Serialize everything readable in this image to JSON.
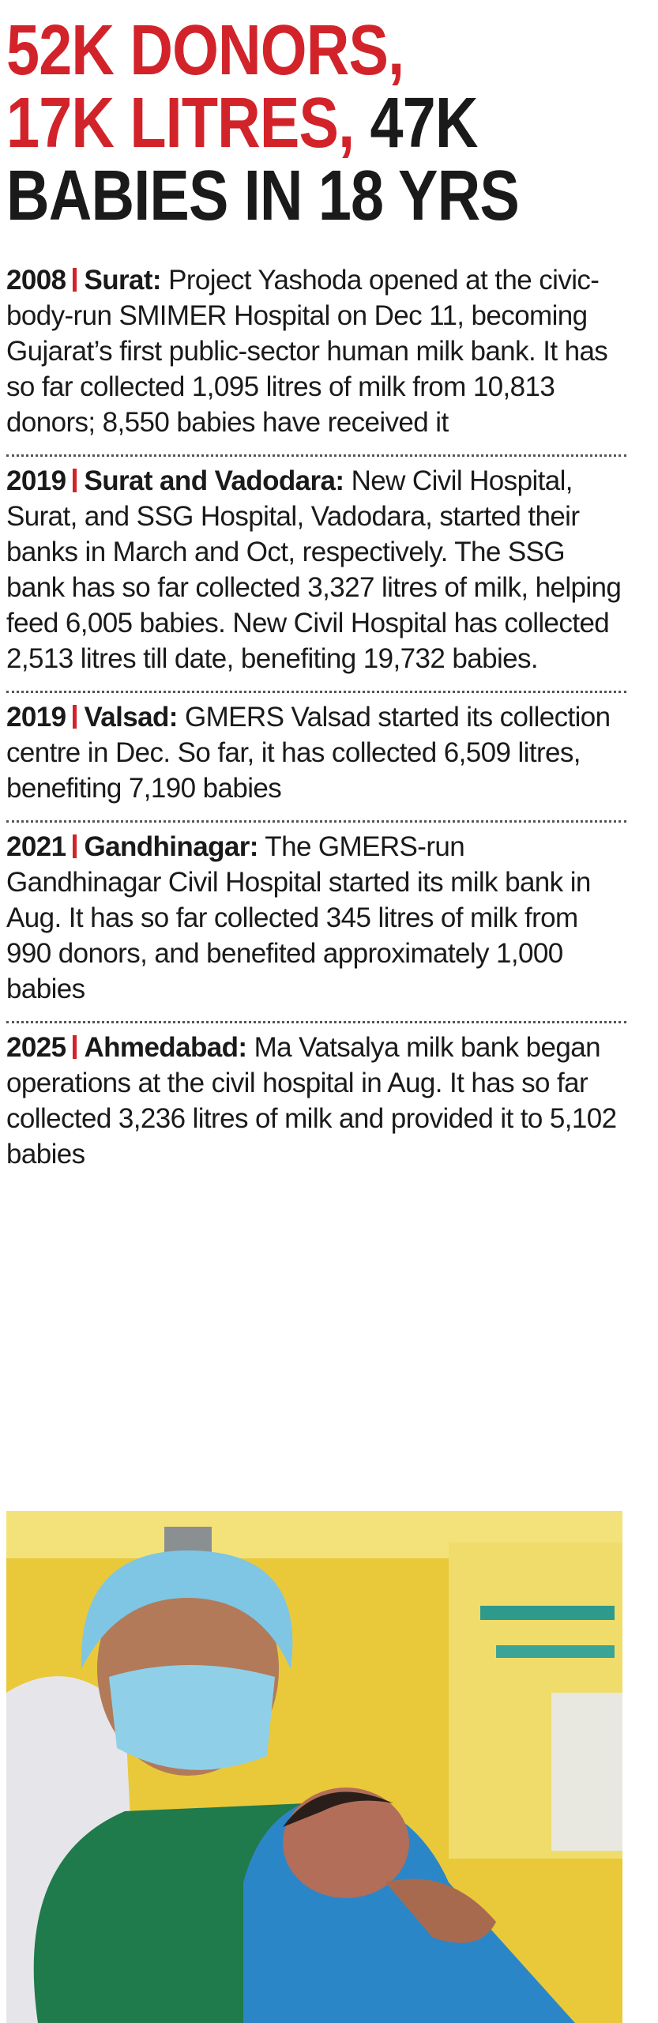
{
  "headline": {
    "parts": [
      "52K DONORS,",
      "17K LITRES,",
      "47K",
      "BABIES IN 18 YRS"
    ]
  },
  "entries": [
    {
      "year": "2008",
      "place": "Surat:",
      "text": "Project Yashoda opened at the civic-body-run SMIMER Hospital on Dec 11, becoming Gujarat’s first public-sector human milk bank. It has so far collected 1,095 litres of milk from 10,813 donors; 8,550 babies have received it"
    },
    {
      "year": "2019",
      "place": "Surat and Vadodara:",
      "text": "New Civil Hospital, Surat, and SSG Hospital, Vadodara, started their banks in March and Oct, respectively. The SSG bank has so far collected 3,327 litres of milk, helping feed 6,005 babies. New Civil Hospital has collected 2,513 litres till date, benefiting 19,732 babies."
    },
    {
      "year": "2019",
      "place": "Valsad:",
      "text": "GMERS Valsad started its collection centre in Dec. So far, it has collected 6,509 litres, benefiting 7,190 babies"
    },
    {
      "year": "2021",
      "place": "Gandhinagar:",
      "text": "The GMERS-run Gandhinagar Civil Hospital started its milk bank in Aug. It has so far collected 345 litres of milk from 990 donors, and benefited approximately 1,000 babies"
    },
    {
      "year": "2025",
      "place": "Ahmedabad:",
      "text": "Ma Vatsalya milk bank began operations at the civil hospital in Aug. It has so far collected 3,236 litres of milk and provided it to 5,102 babies"
    }
  ]
}
